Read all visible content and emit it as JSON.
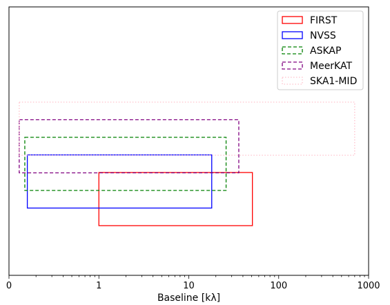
{
  "chart_data": {
    "type": "bar",
    "title": "",
    "xlabel": "Baseline [kλ]",
    "ylabel": "",
    "x_scale": "log",
    "xlim": [
      0.1,
      1000
    ],
    "xticks": [
      0.1,
      1,
      10,
      100,
      1000
    ],
    "xtick_labels": [
      "0",
      "1",
      "10",
      "100",
      "1000"
    ],
    "grid": false,
    "legend_position": "top-right",
    "series": [
      {
        "name": "FIRST",
        "color": "#ff0000",
        "linestyle": "solid",
        "min_baseline": 1.0,
        "max_baseline": 51
      },
      {
        "name": "NVSS",
        "color": "#0000ff",
        "linestyle": "solid",
        "min_baseline": 0.16,
        "max_baseline": 18
      },
      {
        "name": "ASKAP",
        "color": "#008000",
        "linestyle": "dashed",
        "min_baseline": 0.15,
        "max_baseline": 26
      },
      {
        "name": "MeerKAT",
        "color": "#800080",
        "linestyle": "dashed",
        "min_baseline": 0.13,
        "max_baseline": 36
      },
      {
        "name": "SKA1-MID",
        "color": "#ffc0cb",
        "linestyle": "dotted",
        "min_baseline": 0.13,
        "max_baseline": 700
      }
    ]
  }
}
